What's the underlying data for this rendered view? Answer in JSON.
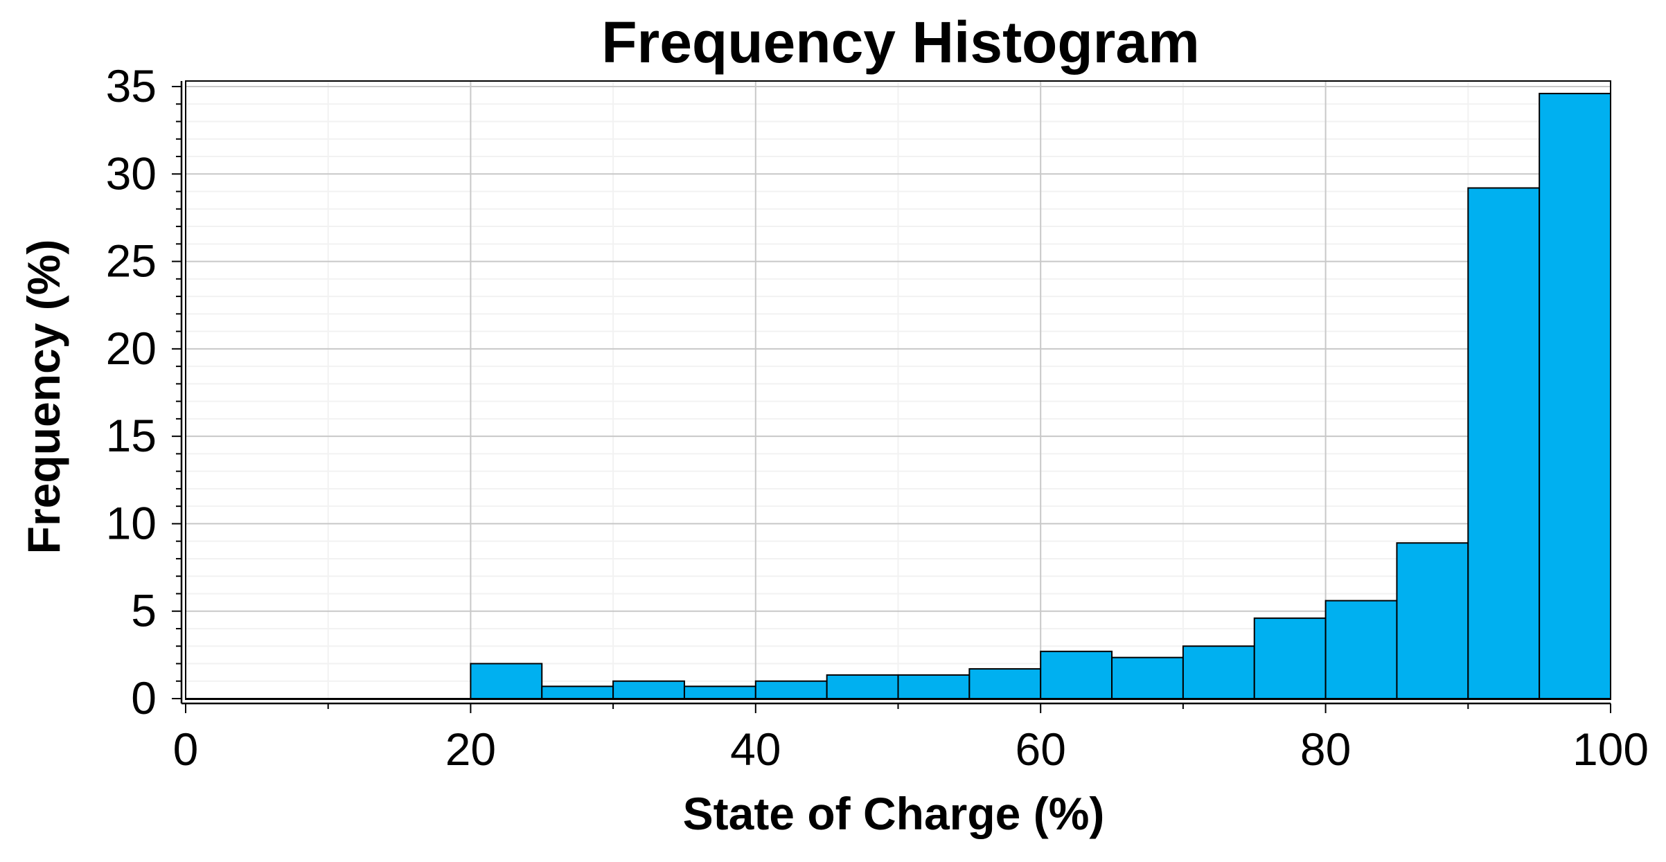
{
  "chart_data": {
    "type": "bar",
    "title": "Frequency Histogram",
    "xlabel": "State of Charge (%)",
    "ylabel": "Frequency (%)",
    "xlim": [
      0,
      100
    ],
    "ylim": [
      0,
      35
    ],
    "xticks": [
      0,
      20,
      40,
      60,
      80,
      100
    ],
    "yticks": [
      0,
      5,
      10,
      15,
      20,
      25,
      30,
      35
    ],
    "bin_width": 5,
    "bins": [
      {
        "x0": 0,
        "x1": 5,
        "value": 0
      },
      {
        "x0": 5,
        "x1": 10,
        "value": 0
      },
      {
        "x0": 10,
        "x1": 15,
        "value": 0
      },
      {
        "x0": 15,
        "x1": 20,
        "value": 0
      },
      {
        "x0": 20,
        "x1": 25,
        "value": 2.0
      },
      {
        "x0": 25,
        "x1": 30,
        "value": 0.7
      },
      {
        "x0": 30,
        "x1": 35,
        "value": 1.0
      },
      {
        "x0": 35,
        "x1": 40,
        "value": 0.7
      },
      {
        "x0": 40,
        "x1": 45,
        "value": 1.0
      },
      {
        "x0": 45,
        "x1": 50,
        "value": 1.35
      },
      {
        "x0": 50,
        "x1": 55,
        "value": 1.35
      },
      {
        "x0": 55,
        "x1": 60,
        "value": 1.7
      },
      {
        "x0": 60,
        "x1": 65,
        "value": 2.7
      },
      {
        "x0": 65,
        "x1": 70,
        "value": 2.35
      },
      {
        "x0": 70,
        "x1": 75,
        "value": 3.0
      },
      {
        "x0": 75,
        "x1": 80,
        "value": 4.6
      },
      {
        "x0": 80,
        "x1": 85,
        "value": 5.6
      },
      {
        "x0": 85,
        "x1": 90,
        "value": 8.9
      },
      {
        "x0": 90,
        "x1": 95,
        "value": 29.2
      },
      {
        "x0": 95,
        "x1": 100,
        "value": 34.6
      }
    ],
    "grid": true,
    "bar_color": "#00b0f0",
    "bar_edge_color": "#000000"
  }
}
